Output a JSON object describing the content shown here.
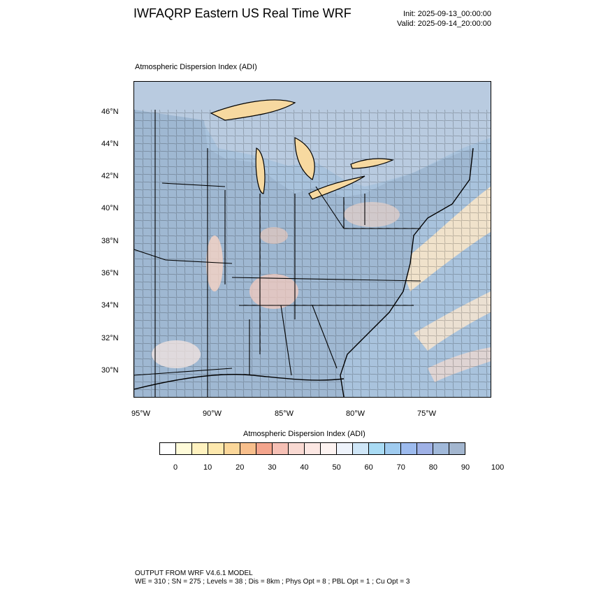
{
  "header": {
    "title": "IWFAQRP Eastern US Real Time WRF",
    "init": "Init: 2025-09-13_00:00:00",
    "valid": "Valid: 2025-09-14_20:00:00"
  },
  "map": {
    "subtitle": "Atmospheric Dispersion Index   (ADI)",
    "lat_labels": [
      "46°N",
      "44°N",
      "42°N",
      "40°N",
      "38°N",
      "36°N",
      "34°N",
      "32°N",
      "30°N"
    ],
    "lon_labels": [
      "95°W",
      "90°W",
      "85°W",
      "80°W",
      "75°W"
    ],
    "colors": {
      "land_base": "#9fb8d2",
      "ocean": "#a9c3dd",
      "lake_warm": "#f7d9a0",
      "county_line": "#1a1a1a"
    }
  },
  "colorbar": {
    "title": "Atmospheric Dispersion Index  (ADI)",
    "colors": [
      "#ffffff",
      "#fffbd9",
      "#fff2bf",
      "#fde8ad",
      "#fbd79a",
      "#f8bf8c",
      "#f4a58d",
      "#f6c0b5",
      "#f9d9d2",
      "#fce7e3",
      "#fdf3f1",
      "#eef3fb",
      "#cfe6f7",
      "#a9dbf4",
      "#9fcbef",
      "#9dbbee",
      "#9fb1e6",
      "#a1b9da",
      "#a3b6cf"
    ],
    "labels": [
      "0",
      "10",
      "20",
      "30",
      "40",
      "50",
      "60",
      "70",
      "80",
      "90",
      "100"
    ]
  },
  "footer": {
    "line1": "OUTPUT FROM WRF V4.6.1 MODEL",
    "line2": "WE = 310 ; SN = 275 ; Levels = 38 ; Dis = 8km ; Phys Opt = 8 ; PBL Opt = 1 ; Cu Opt = 3"
  }
}
